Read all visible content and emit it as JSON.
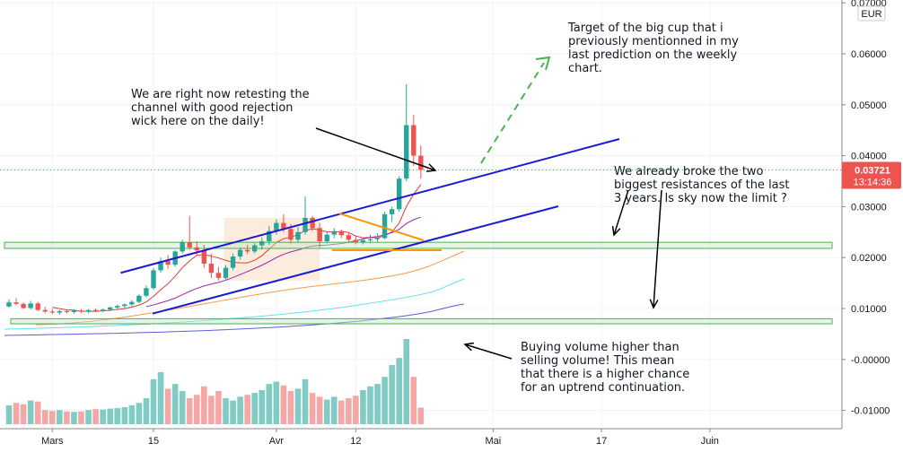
{
  "currency": "EUR",
  "last_price": "0.03721",
  "countdown": "13:14:36",
  "colors": {
    "up": "#26a69a",
    "down": "#ef5350",
    "vol_up": "#80cbc4",
    "vol_down": "#f4a7a5",
    "channel": "#1a1ad6",
    "support_zone": "#4caf50",
    "resistance_line": "#ff9800",
    "target_arrow": "#4caf50",
    "last_price_bg": "#ef5350"
  },
  "annotations": {
    "target": "Target of the big cup that i\npreviously mentionned in my\nlast prediction on the weekly\nchart.",
    "retest": "We are right now retesting the\nchannel with good rejection\nwick here on the daily!",
    "resistances": "We already broke the two\nbiggest resistances of the last\n3 years. Is sky now the limit ?",
    "volume": "Buying volume higher than\nselling volume! This mean\nthat there is a higher chance\nfor an uptrend continuation."
  },
  "chart_data": {
    "type": "candlestick",
    "price_axis": {
      "ticks": [
        0.07,
        0.06,
        0.05,
        0.04,
        0.03,
        0.02,
        0.01,
        0.0,
        -0.01
      ],
      "labels": [
        "0.07000",
        "0.06000",
        "0.05000",
        "0.04000",
        "0.03000",
        "0.02000",
        "0.01000",
        "-0.00000",
        "-0.01000"
      ],
      "range": [
        -0.0125,
        0.07
      ]
    },
    "time_axis": {
      "ticks": [
        {
          "label": "Mars",
          "idx": 6
        },
        {
          "label": "15",
          "idx": 20
        },
        {
          "label": "Avr",
          "idx": 37
        },
        {
          "label": "12",
          "idx": 48
        },
        {
          "label": "Mai",
          "idx": 67
        },
        {
          "label": "17",
          "idx": 82
        },
        {
          "label": "Juin",
          "idx": 97
        }
      ]
    },
    "candles": [
      [
        0.0104,
        0.0118,
        0.0102,
        0.0112
      ],
      [
        0.0112,
        0.012,
        0.0106,
        0.0109
      ],
      [
        0.0109,
        0.0112,
        0.0099,
        0.0101
      ],
      [
        0.0101,
        0.0115,
        0.0098,
        0.011
      ],
      [
        0.011,
        0.0113,
        0.0095,
        0.0097
      ],
      [
        0.0097,
        0.0103,
        0.0091,
        0.0094
      ],
      [
        0.0094,
        0.0099,
        0.0089,
        0.0092
      ],
      [
        0.0092,
        0.0097,
        0.0088,
        0.0095
      ],
      [
        0.0095,
        0.0098,
        0.009,
        0.0093
      ],
      [
        0.0093,
        0.0098,
        0.009,
        0.0096
      ],
      [
        0.0096,
        0.0099,
        0.0091,
        0.0094
      ],
      [
        0.0094,
        0.0099,
        0.0091,
        0.0097
      ],
      [
        0.0097,
        0.01,
        0.0093,
        0.0095
      ],
      [
        0.0095,
        0.01,
        0.0093,
        0.0098
      ],
      [
        0.0098,
        0.0104,
        0.0095,
        0.0102
      ],
      [
        0.0102,
        0.0108,
        0.0099,
        0.0105
      ],
      [
        0.0105,
        0.011,
        0.0101,
        0.0108
      ],
      [
        0.0108,
        0.0116,
        0.0104,
        0.0113
      ],
      [
        0.0113,
        0.0128,
        0.011,
        0.0125
      ],
      [
        0.0125,
        0.0145,
        0.0122,
        0.014
      ],
      [
        0.014,
        0.018,
        0.0137,
        0.0175
      ],
      [
        0.0175,
        0.02,
        0.017,
        0.0193
      ],
      [
        0.0193,
        0.0205,
        0.0178,
        0.0186
      ],
      [
        0.0186,
        0.0215,
        0.0182,
        0.0212
      ],
      [
        0.0212,
        0.0235,
        0.0208,
        0.023
      ],
      [
        0.023,
        0.0282,
        0.0215,
        0.022
      ],
      [
        0.022,
        0.0232,
        0.0205,
        0.0214
      ],
      [
        0.0214,
        0.0225,
        0.018,
        0.0188
      ],
      [
        0.0188,
        0.0208,
        0.016,
        0.017
      ],
      [
        0.017,
        0.0182,
        0.0155,
        0.016
      ],
      [
        0.016,
        0.0185,
        0.0157,
        0.018
      ],
      [
        0.018,
        0.0208,
        0.0175,
        0.0202
      ],
      [
        0.0202,
        0.022,
        0.0196,
        0.0215
      ],
      [
        0.0215,
        0.0225,
        0.0207,
        0.0212
      ],
      [
        0.0212,
        0.0228,
        0.0208,
        0.0224
      ],
      [
        0.0224,
        0.024,
        0.0215,
        0.0232
      ],
      [
        0.0232,
        0.0262,
        0.0225,
        0.0252
      ],
      [
        0.0252,
        0.0275,
        0.0245,
        0.0268
      ],
      [
        0.0268,
        0.0285,
        0.025,
        0.0256
      ],
      [
        0.0256,
        0.0266,
        0.0228,
        0.0235
      ],
      [
        0.0235,
        0.026,
        0.023,
        0.025
      ],
      [
        0.025,
        0.032,
        0.0245,
        0.0278
      ],
      [
        0.0278,
        0.0282,
        0.0252,
        0.0258
      ],
      [
        0.0258,
        0.0268,
        0.022,
        0.0232
      ],
      [
        0.0232,
        0.025,
        0.0228,
        0.0245
      ],
      [
        0.0245,
        0.0258,
        0.0238,
        0.0252
      ],
      [
        0.0252,
        0.0255,
        0.0238,
        0.0244
      ],
      [
        0.0244,
        0.025,
        0.023,
        0.0235
      ],
      [
        0.0235,
        0.0242,
        0.0226,
        0.023
      ],
      [
        0.023,
        0.0238,
        0.0226,
        0.0234
      ],
      [
        0.0234,
        0.0245,
        0.0228,
        0.0236
      ],
      [
        0.0236,
        0.0248,
        0.023,
        0.0238
      ],
      [
        0.0238,
        0.029,
        0.0236,
        0.0285
      ],
      [
        0.0285,
        0.03,
        0.027,
        0.0295
      ],
      [
        0.0295,
        0.036,
        0.029,
        0.0355
      ],
      [
        0.0355,
        0.054,
        0.035,
        0.046
      ],
      [
        0.046,
        0.048,
        0.038,
        0.04
      ],
      [
        0.04,
        0.042,
        0.0355,
        0.0372
      ]
    ],
    "volume": [
      0.4,
      0.45,
      0.42,
      0.5,
      0.48,
      0.3,
      0.28,
      0.3,
      0.27,
      0.26,
      0.27,
      0.3,
      0.32,
      0.31,
      0.33,
      0.34,
      0.36,
      0.4,
      0.45,
      0.55,
      0.95,
      1.1,
      0.75,
      0.85,
      0.7,
      0.55,
      0.62,
      0.8,
      0.6,
      0.7,
      0.55,
      0.5,
      0.58,
      0.62,
      0.66,
      0.72,
      0.85,
      0.9,
      0.82,
      0.7,
      0.75,
      0.95,
      0.66,
      0.58,
      0.52,
      0.58,
      0.5,
      0.55,
      0.6,
      0.72,
      0.8,
      0.85,
      1.0,
      1.25,
      1.4,
      1.8,
      1.0,
      0.35
    ],
    "overlays": {
      "channel_upper": [
        [
          8,
          0.017
        ],
        [
          46,
          0.0305
        ],
        [
          70,
          0.043
        ]
      ],
      "channel_lower": [
        [
          12,
          0.009
        ],
        [
          66,
          0.0302
        ]
      ],
      "support_zone_upper": [
        0.0218,
        0.023
      ],
      "support_zone_lower": [
        0.007,
        0.008
      ],
      "descending_resistance": [
        [
          39,
          0.0282
        ],
        [
          48,
          0.0236
        ]
      ]
    }
  }
}
